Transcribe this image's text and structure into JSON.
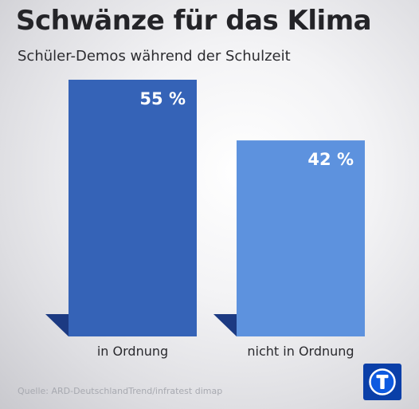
{
  "title": "Schwänze für das Klima",
  "subtitle": "Schüler-Demos während der Schulzeit",
  "source": "Quelle: ARD-DeutschlandTrend/infratest dimap",
  "logo_icon": "ard-logo-icon",
  "chart_data": {
    "type": "bar",
    "title": "Schwänze für das Klima",
    "subtitle": "Schüler-Demos während der Schulzeit",
    "categories": [
      "in Ordnung",
      "nicht in Ordnung"
    ],
    "values": [
      55,
      42
    ],
    "labels": [
      "55 %",
      "42 %"
    ],
    "colors": [
      "#3563b7",
      "#5d92de"
    ],
    "shadow_color": "#1c3a82",
    "unit": "%",
    "xlabel": "",
    "ylabel": "",
    "ylim": [
      0,
      60
    ],
    "grid": false,
    "legend": "none"
  }
}
